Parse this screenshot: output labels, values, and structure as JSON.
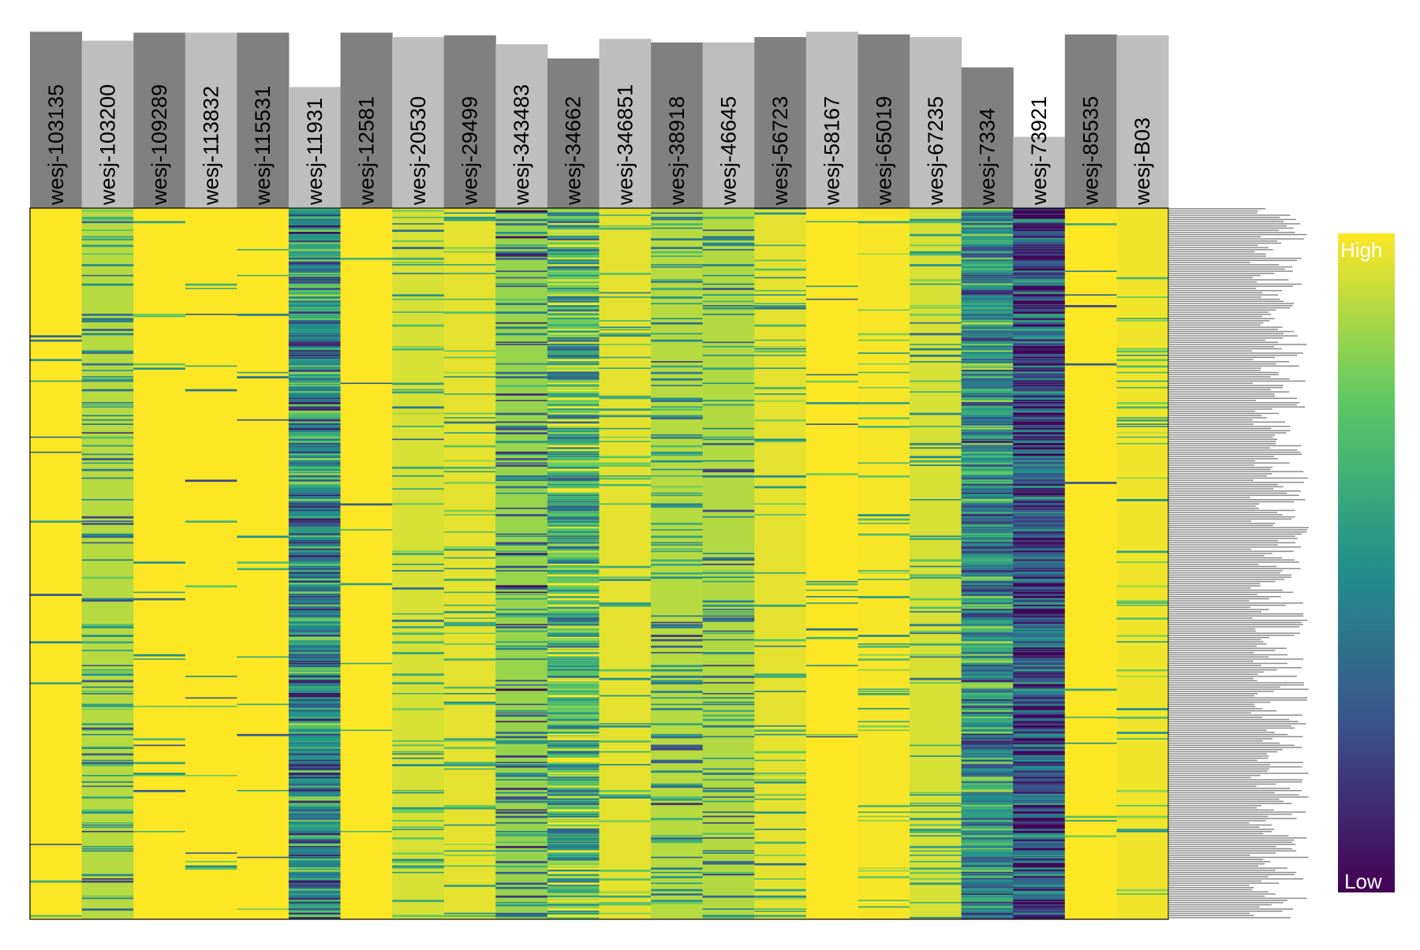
{
  "chart_data": {
    "type": "heatmap",
    "samples": [
      {
        "name": "wesj-103135",
        "bar": 0.99
      },
      {
        "name": "wesj-103200",
        "bar": 0.94
      },
      {
        "name": "wesj-109289",
        "bar": 0.985
      },
      {
        "name": "wesj-113832",
        "bar": 0.985
      },
      {
        "name": "wesj-115531",
        "bar": 0.985
      },
      {
        "name": "wesj-11931",
        "bar": 0.68
      },
      {
        "name": "wesj-12581",
        "bar": 0.985
      },
      {
        "name": "wesj-20530",
        "bar": 0.96
      },
      {
        "name": "wesj-29499",
        "bar": 0.97
      },
      {
        "name": "wesj-343483",
        "bar": 0.92
      },
      {
        "name": "wesj-34662",
        "bar": 0.84
      },
      {
        "name": "wesj-346851",
        "bar": 0.95
      },
      {
        "name": "wesj-38918",
        "bar": 0.93
      },
      {
        "name": "wesj-46645",
        "bar": 0.93
      },
      {
        "name": "wesj-56723",
        "bar": 0.96
      },
      {
        "name": "wesj-58167",
        "bar": 0.99
      },
      {
        "name": "wesj-65019",
        "bar": 0.975
      },
      {
        "name": "wesj-67235",
        "bar": 0.96
      },
      {
        "name": "wesj-7334",
        "bar": 0.79
      },
      {
        "name": "wesj-73921",
        "bar": 0.4
      },
      {
        "name": "wesj-85535",
        "bar": 0.975
      },
      {
        "name": "wesj-B03",
        "bar": 0.97
      }
    ],
    "bar_colors": [
      "#808080",
      "#bebebe"
    ],
    "legend": {
      "high_label": "High",
      "low_label": "Low"
    },
    "colorscale": [
      "#440154",
      "#3b528b",
      "#21918c",
      "#5ec962",
      "#fde725"
    ],
    "rows": 330,
    "column_mean_value": [
      0.99,
      0.83,
      0.97,
      0.98,
      0.98,
      0.45,
      0.99,
      0.88,
      0.9,
      0.78,
      0.68,
      0.9,
      0.83,
      0.82,
      0.9,
      0.99,
      0.93,
      0.88,
      0.5,
      0.22,
      0.98,
      0.92
    ],
    "row_bar_range": [
      0.75,
      1.0
    ],
    "grid": false
  }
}
